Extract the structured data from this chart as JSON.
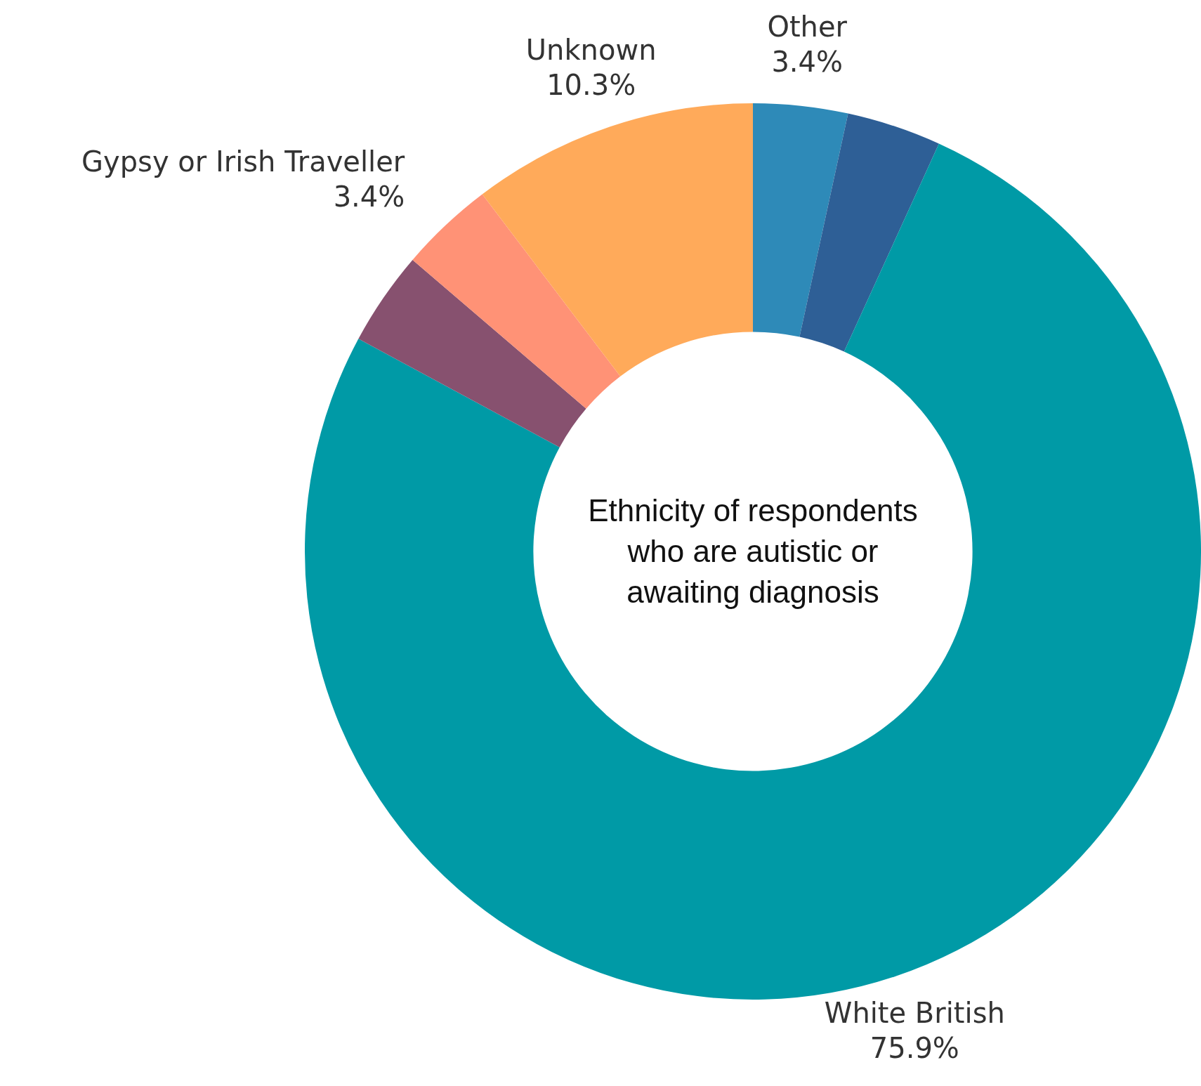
{
  "chart_data": {
    "type": "donut",
    "title": "Ethnicity of respondents who are autistic or awaiting diagnosis",
    "categories": [
      "Other",
      null,
      "White British",
      null,
      "Gypsy or Irish Traveller",
      "Unknown"
    ],
    "values": [
      3.4,
      3.4,
      75.9,
      3.4,
      3.4,
      10.3
    ],
    "colors": [
      "#2e8ab8",
      "#2e5f96",
      "#009aa6",
      "#87516f",
      "#ff9276",
      "#ffaa5a"
    ],
    "value_labels": [
      "3.4%",
      null,
      "75.9%",
      null,
      "3.4%",
      "10.3%"
    ]
  }
}
